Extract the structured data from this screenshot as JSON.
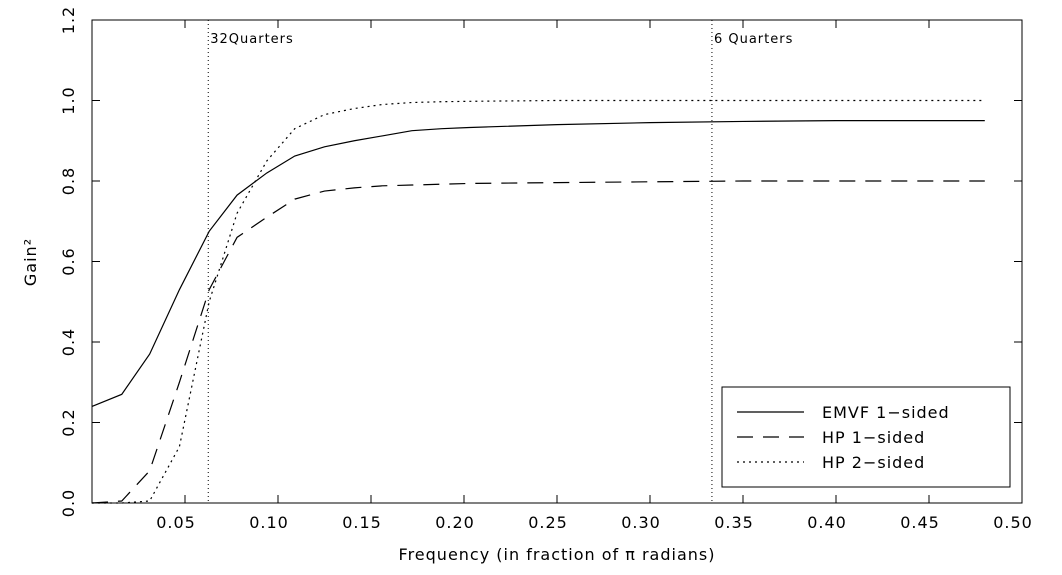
{
  "chart_data": {
    "type": "line",
    "x_label": "Frequency (in fraction of π radians)",
    "y_label": "Gain²",
    "x": [
      0,
      0.016,
      0.031,
      0.047,
      0.063,
      0.078,
      0.094,
      0.109,
      0.125,
      0.141,
      0.156,
      0.172,
      0.188,
      0.203,
      0.25,
      0.3,
      0.35,
      0.4,
      0.45,
      0.48
    ],
    "series": [
      {
        "name": "EMVF 1−sided",
        "color": "#000000",
        "style": "solid",
        "values": [
          0.24,
          0.27,
          0.37,
          0.53,
          0.675,
          0.765,
          0.82,
          0.862,
          0.885,
          0.9,
          0.912,
          0.925,
          0.93,
          0.933,
          0.94,
          0.945,
          0.948,
          0.95,
          0.95,
          0.95
        ]
      },
      {
        "name": "HP 1−sided",
        "color": "#000000",
        "style": "dashed",
        "values": [
          0,
          0.005,
          0.08,
          0.3,
          0.53,
          0.66,
          0.71,
          0.755,
          0.775,
          0.783,
          0.788,
          0.79,
          0.792,
          0.794,
          0.796,
          0.798,
          0.8,
          0.8,
          0.8,
          0.8
        ]
      },
      {
        "name": "HP 2−sided",
        "color": "#000000",
        "style": "dotted",
        "values": [
          0,
          0,
          0.005,
          0.14,
          0.5,
          0.72,
          0.85,
          0.93,
          0.965,
          0.98,
          0.99,
          0.995,
          0.997,
          0.998,
          1,
          1,
          1,
          1,
          1,
          1
        ]
      }
    ],
    "annotations": [
      {
        "x": 0.0625,
        "label": "32Quarters"
      },
      {
        "x": 0.3333,
        "label": "6 Quarters"
      }
    ],
    "xlim": [
      0,
      0.5
    ],
    "ylim": [
      0,
      1.2
    ],
    "xticks": [
      {
        "value": 0.05,
        "label": "0.05"
      },
      {
        "value": 0.1,
        "label": "0.10"
      },
      {
        "value": 0.15,
        "label": "0.15"
      },
      {
        "value": 0.2,
        "label": "0.20"
      },
      {
        "value": 0.25,
        "label": "0.25"
      },
      {
        "value": 0.3,
        "label": "0.30"
      },
      {
        "value": 0.35,
        "label": "0.35"
      },
      {
        "value": 0.4,
        "label": "0.40"
      },
      {
        "value": 0.45,
        "label": "0.45"
      },
      {
        "value": 0.5,
        "label": "0.50"
      }
    ],
    "yticks": [
      {
        "value": 0,
        "label": "0.0"
      },
      0.2,
      0.4,
      0.6,
      0.8,
      {
        "value": 1,
        "label": "1.0"
      },
      {
        "value": 1.2,
        "label": "1.2"
      }
    ],
    "legend": "lower right"
  }
}
